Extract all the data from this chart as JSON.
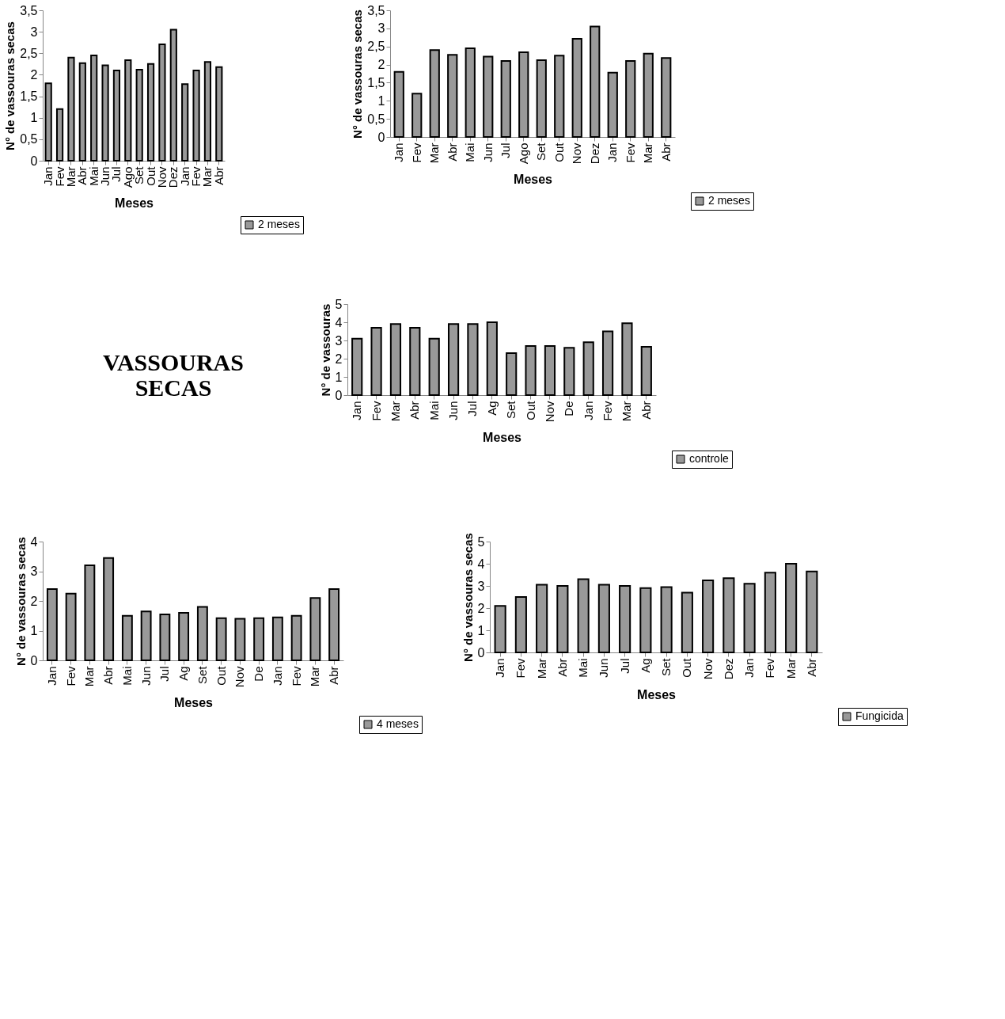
{
  "chart_data": [
    {
      "type": "bar",
      "xlabel": "Meses",
      "ylabel": "N° de vassouras secas",
      "categories": [
        "Jan",
        "Fev",
        "Mar",
        "Abr",
        "Mai",
        "Jun",
        "Jul",
        "Ago",
        "Set",
        "Out",
        "Nov",
        "Dez",
        "Jan",
        "Fev",
        "Mar",
        "Abr"
      ],
      "series": [
        {
          "name": "2 meses",
          "color": "#999999",
          "values": [
            1.8,
            1.2,
            2.4,
            2.27,
            2.45,
            2.22,
            2.1,
            2.34,
            2.12,
            2.25,
            2.71,
            3.05,
            1.78,
            2.1,
            2.3,
            2.18
          ]
        }
      ],
      "ylim": [
        0,
        3.5
      ],
      "yticks": [
        0,
        {
          "value": 0.5,
          "label": "0,5"
        },
        1,
        {
          "value": 1.5,
          "label": "1,5"
        },
        2,
        {
          "value": 2.5,
          "label": "2,5"
        },
        3,
        {
          "value": 3.5,
          "label": "3,5"
        }
      ],
      "grid": false,
      "legend": "bottom right"
    },
    {
      "type": "bar",
      "xlabel": "Meses",
      "ylabel": "N° de vassouras secas",
      "categories": [
        "Jan",
        "Fev",
        "Mar",
        "Abr",
        "Mai",
        "Jun",
        "Jul",
        "Ago",
        "Set",
        "Out",
        "Nov",
        "Dez",
        "Jan",
        "Fev",
        "Mar",
        "Abr"
      ],
      "series": [
        {
          "name": "2 meses",
          "color": "#999999",
          "values": [
            1.8,
            1.2,
            2.4,
            2.27,
            2.45,
            2.22,
            2.1,
            2.34,
            2.12,
            2.25,
            2.71,
            3.05,
            1.78,
            2.1,
            2.3,
            2.18
          ]
        }
      ],
      "ylim": [
        0,
        3.5
      ],
      "yticks": [
        0,
        {
          "value": 0.5,
          "label": "0,5"
        },
        1,
        {
          "value": 1.5,
          "label": "1,5"
        },
        2,
        {
          "value": 2.5,
          "label": "2,5"
        },
        3,
        {
          "value": 3.5,
          "label": "3,5"
        }
      ],
      "grid": false,
      "legend": "bottom right"
    },
    {
      "type": "other",
      "title": "VASSOURAS SECAS"
    },
    {
      "type": "bar",
      "xlabel": "Meses",
      "ylabel": "N° de vassouras",
      "categories": [
        "Jan",
        "Fev",
        "Mar",
        "Abr",
        "Mai",
        "Jun",
        "Jul",
        "Ag",
        "Set",
        "Out",
        "Nov",
        "De",
        "Jan",
        "Fev",
        "Mar",
        "Abr"
      ],
      "series": [
        {
          "name": "controle",
          "color": "#999999",
          "values": [
            3.1,
            3.7,
            3.9,
            3.7,
            3.1,
            3.9,
            3.9,
            4.0,
            2.3,
            2.7,
            2.7,
            2.6,
            2.9,
            3.5,
            3.95,
            2.65
          ]
        }
      ],
      "ylim": [
        0,
        5
      ],
      "yticks": [
        0,
        1,
        2,
        3,
        4,
        5
      ],
      "grid": false,
      "legend": "bottom right"
    },
    {
      "type": "bar",
      "xlabel": "Meses",
      "ylabel": "N° de vassouras secas",
      "categories": [
        "Jan",
        "Fev",
        "Mar",
        "Abr",
        "Mai",
        "Jun",
        "Jul",
        "Ag",
        "Set",
        "Out",
        "Nov",
        "De",
        "Jan",
        "Fev",
        "Mar",
        "Abr"
      ],
      "series": [
        {
          "name": "4 meses",
          "color": "#999999",
          "values": [
            2.4,
            2.25,
            3.2,
            3.45,
            1.5,
            1.65,
            1.55,
            1.6,
            1.8,
            1.42,
            1.4,
            1.42,
            1.45,
            1.5,
            2.1,
            2.4
          ]
        }
      ],
      "ylim": [
        0,
        4
      ],
      "yticks": [
        0,
        1,
        2,
        3,
        4
      ],
      "grid": false,
      "legend": "bottom right"
    },
    {
      "type": "bar",
      "xlabel": "Meses",
      "ylabel": "N° de vassouras secas",
      "categories": [
        "Jan",
        "Fev",
        "Mar",
        "Abr",
        "Mai",
        "Jun",
        "Jul",
        "Ag",
        "Set",
        "Out",
        "Nov",
        "Dez",
        "Jan",
        "Fev",
        "Mar",
        "Abr"
      ],
      "series": [
        {
          "name": "Fungicida",
          "color": "#999999",
          "values": [
            2.1,
            2.5,
            3.05,
            3.0,
            3.3,
            3.05,
            3.0,
            2.9,
            2.95,
            2.7,
            3.25,
            3.35,
            3.1,
            3.6,
            4.0,
            3.65
          ]
        }
      ],
      "ylim": [
        0,
        5
      ],
      "yticks": [
        0,
        1,
        2,
        3,
        4,
        5
      ],
      "grid": false,
      "legend": "bottom right"
    }
  ]
}
